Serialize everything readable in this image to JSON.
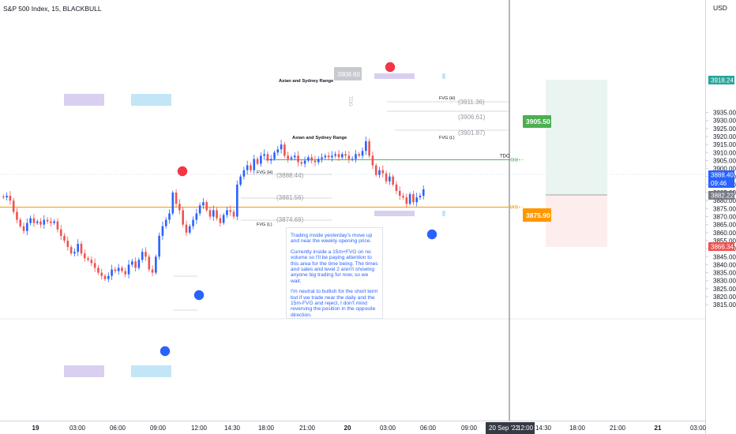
{
  "header": {
    "symbol": "S&P 500 Index, 15, BLACKBULL"
  },
  "currency": "USD",
  "chart_data": {
    "type": "candlestick",
    "y_range": [
      3813,
      3943
    ],
    "y_ticks": [
      3815,
      3820,
      3825,
      3830,
      3835,
      3840,
      3845,
      3850,
      3855,
      3860,
      3865,
      3870,
      3875,
      3880,
      3885,
      3890,
      3895,
      3900,
      3905,
      3910,
      3915,
      3920,
      3925,
      3930,
      3935
    ],
    "x_ticks": [
      "19",
      "03:00",
      "06:00",
      "09:00",
      "12:00",
      "14:30",
      "18:00",
      "21:00",
      "20",
      "03:00",
      "06:00",
      "09:00",
      "12:00",
      "14:30",
      "18:00",
      "21:00",
      "21",
      "03:00"
    ],
    "crosshair_date": "20 Sep '22",
    "crosshair_time": "12:00",
    "colors": {
      "up": "#2962ff",
      "down": "#ef5350",
      "tdo": "#4caf50",
      "wo": "#ff9800"
    },
    "close_series": [
      3882,
      3883,
      3880,
      3873,
      3868,
      3864,
      3861,
      3866,
      3869,
      3866,
      3867,
      3865,
      3868,
      3867,
      3866,
      3867,
      3862,
      3858,
      3855,
      3851,
      3847,
      3848,
      3853,
      3847,
      3844,
      3843,
      3841,
      3838,
      3835,
      3833,
      3831,
      3833,
      3837,
      3836,
      3838,
      3836,
      3834,
      3840,
      3842,
      3838,
      3843,
      3848,
      3845,
      3837,
      3835,
      3845,
      3858,
      3864,
      3868,
      3872,
      3885,
      3878,
      3874,
      3865,
      3860,
      3864,
      3868,
      3872,
      3877,
      3879,
      3874,
      3870,
      3874,
      3869,
      3866,
      3871,
      3874,
      3873,
      3870,
      3890,
      3895,
      3899,
      3902,
      3899,
      3906,
      3903,
      3908,
      3909,
      3905,
      3906,
      3910,
      3912,
      3915,
      3908,
      3906,
      3907,
      3908,
      3904,
      3903,
      3905,
      3907,
      3905,
      3904,
      3906,
      3907,
      3908,
      3907,
      3908,
      3909,
      3907,
      3909,
      3908,
      3906,
      3906,
      3909,
      3908,
      3911,
      3917,
      3908,
      3902,
      3896,
      3899,
      3897,
      3892,
      3895,
      3890,
      3886,
      3883,
      3882,
      3878,
      3884,
      3879,
      3882,
      3883,
      3887
    ],
    "series": [
      {
        "name": "TDO",
        "value": 3905.5,
        "label": "TDO",
        "short": "DO"
      },
      {
        "name": "WO",
        "value": 3875.9,
        "label": "WO"
      }
    ],
    "levels": [
      {
        "label": "FVG (H)",
        "value": "(3911.36)"
      },
      {
        "label": "",
        "value": "(3906.61)"
      },
      {
        "label": "FVG (L)",
        "value": "(3901.87)"
      },
      {
        "label": "FVG (H)",
        "value": "(3888.44)"
      },
      {
        "label": "",
        "value": "(3881.56)"
      },
      {
        "label": "FVG (L)",
        "value": "(3874.69)"
      }
    ],
    "price_badges": [
      {
        "value": "3918.24",
        "color": "#26a69a"
      },
      {
        "value": "3888.40",
        "sub": "09:46",
        "color": "#2962ff"
      },
      {
        "value": "3882.22",
        "color": "#787b86"
      },
      {
        "value": "3866.34",
        "color": "#ef5350"
      },
      {
        "value": "3905.50",
        "color": "#4caf50"
      },
      {
        "value": "3875.90",
        "color": "#ff9800"
      }
    ],
    "annotations": [
      "Asian and Sydney Range",
      "Asian and Sydney Range",
      "3908.60",
      "TDO"
    ]
  },
  "note": {
    "lines": [
      "Trading inside yesterday's move up and near the weekly opening price.",
      "Currently inside a 15m+FVG on no volume so I'll be paying attention to this area for the time being.  The times and sales and level 2 aren't showing anyone big trading for now, so we wait.",
      "I'm neutral to bullish for the short term but if we trade near the daily and the 15m-FVG and reject, I don't mind reversing the position in the opposite direction."
    ]
  }
}
